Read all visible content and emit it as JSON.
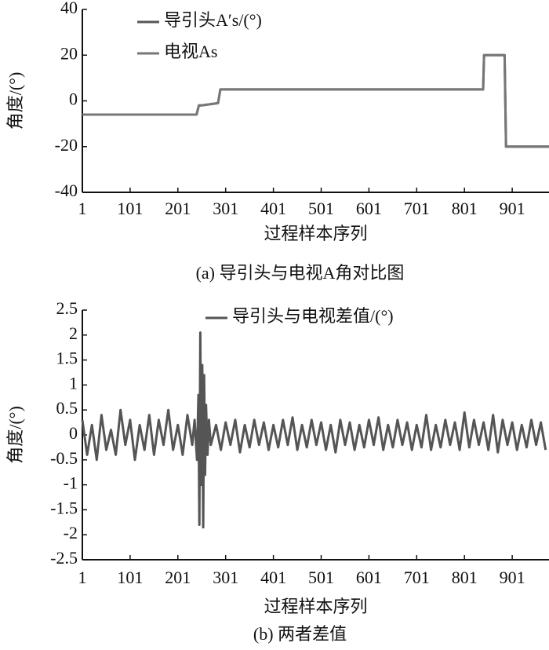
{
  "chart_data": [
    {
      "type": "line",
      "caption": "(a) 导引头与电视A角对比图",
      "xlabel": "过程样本序列",
      "ylabel": "角度/(°)",
      "x": [
        1,
        240,
        245,
        250,
        285,
        290,
        840,
        842,
        885,
        888,
        978
      ],
      "series": [
        {
          "name": "导引头A′s/(°)",
          "color": "#555555",
          "values": [
            -6,
            -6,
            -2,
            -2,
            -1,
            5,
            5,
            20,
            20,
            -20,
            -20
          ]
        },
        {
          "name": "电视As",
          "color": "#777777",
          "values": [
            -6,
            -6,
            -2,
            -2,
            -1,
            5,
            5,
            20,
            20,
            -20,
            -20
          ]
        }
      ],
      "xlim": [
        1,
        978
      ],
      "xticks": [
        1,
        101,
        201,
        301,
        401,
        501,
        601,
        701,
        801,
        901
      ],
      "ylim": [
        -40,
        40
      ],
      "yticks": [
        -40,
        -20,
        0,
        20,
        40
      ]
    },
    {
      "type": "line",
      "caption": "(b) 两者差值",
      "xlabel": "过程样本序列",
      "ylabel": "角度/(°)",
      "x": [
        1,
        11,
        21,
        31,
        41,
        51,
        61,
        71,
        81,
        91,
        101,
        111,
        121,
        131,
        141,
        151,
        161,
        171,
        181,
        191,
        201,
        211,
        221,
        231,
        236,
        241,
        244,
        246,
        248,
        250,
        252,
        254,
        256,
        258,
        260,
        263,
        266,
        270,
        281,
        291,
        301,
        311,
        321,
        331,
        341,
        351,
        361,
        371,
        381,
        391,
        401,
        411,
        421,
        431,
        441,
        451,
        461,
        471,
        481,
        491,
        501,
        511,
        521,
        531,
        541,
        551,
        561,
        571,
        581,
        591,
        601,
        611,
        621,
        631,
        641,
        651,
        661,
        671,
        681,
        691,
        701,
        711,
        721,
        731,
        741,
        751,
        761,
        771,
        781,
        791,
        801,
        811,
        821,
        831,
        841,
        851,
        861,
        871,
        881,
        891,
        901,
        911,
        921,
        931,
        941,
        951,
        961,
        971
      ],
      "series": [
        {
          "name": "导引头与电视差值/(°)",
          "color": "#555555",
          "values": [
            0.3,
            -0.4,
            0.2,
            -0.5,
            0.4,
            -0.3,
            0.1,
            -0.4,
            0.5,
            -0.2,
            0.3,
            -0.5,
            0.2,
            -0.3,
            0.4,
            -0.4,
            0.3,
            -0.2,
            0.5,
            -0.3,
            0.2,
            -0.4,
            0.4,
            -0.2,
            0.3,
            -0.5,
            0.8,
            -1.8,
            2.05,
            -1.0,
            1.4,
            -1.85,
            1.2,
            -0.8,
            0.6,
            -0.4,
            0.3,
            -0.2,
            0.2,
            -0.3,
            0.25,
            -0.2,
            0.3,
            -0.35,
            0.2,
            -0.25,
            0.3,
            -0.2,
            0.25,
            -0.3,
            0.2,
            -0.25,
            0.3,
            -0.2,
            0.35,
            -0.3,
            0.2,
            -0.25,
            0.3,
            -0.2,
            0.25,
            -0.3,
            0.2,
            -0.35,
            0.3,
            -0.2,
            0.25,
            -0.3,
            0.2,
            -0.25,
            0.3,
            -0.2,
            0.35,
            -0.3,
            0.2,
            -0.25,
            0.3,
            -0.2,
            0.25,
            -0.3,
            0.2,
            -0.25,
            0.4,
            -0.3,
            0.2,
            -0.25,
            0.3,
            -0.2,
            0.25,
            -0.3,
            0.45,
            -0.25,
            0.3,
            -0.2,
            0.25,
            -0.3,
            0.4,
            -0.35,
            0.3,
            -0.2,
            0.25,
            -0.3,
            0.2,
            -0.25,
            0.3,
            -0.2,
            0.25,
            -0.3
          ]
        }
      ],
      "xlim": [
        1,
        978
      ],
      "xticks": [
        1,
        101,
        201,
        301,
        401,
        501,
        601,
        701,
        801,
        901
      ],
      "ylim": [
        -2.5,
        2.5
      ],
      "yticks": [
        -2.5,
        -2,
        -1.5,
        -1,
        -0.5,
        0,
        0.5,
        1,
        1.5,
        2,
        2.5
      ]
    }
  ]
}
